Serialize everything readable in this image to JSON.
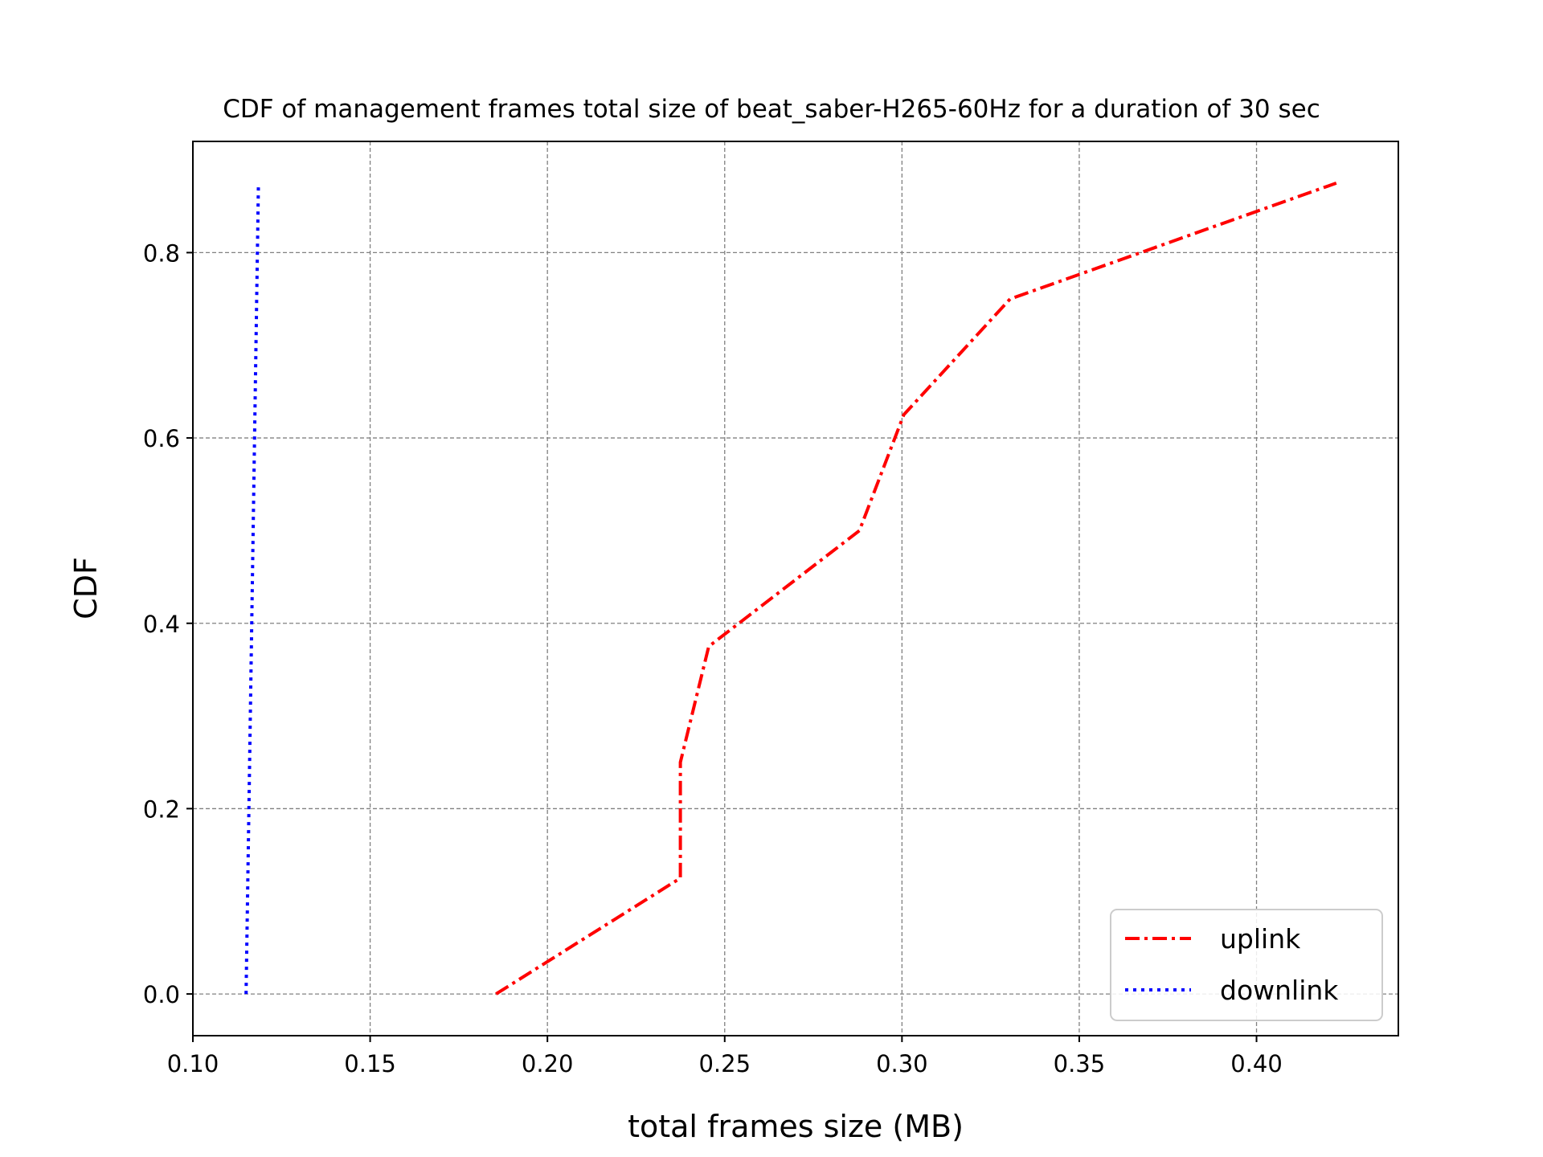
{
  "chart_data": {
    "type": "line",
    "title": "CDF of management frames total size of beat_saber-H265-60Hz for a duration of 30 sec",
    "xlabel": "total frames size (MB)",
    "ylabel": "CDF",
    "xlim": [
      0.1,
      0.44
    ],
    "ylim": [
      -0.045,
      0.92
    ],
    "xticks": [
      0.1,
      0.15,
      0.2,
      0.25,
      0.3,
      0.35,
      0.4
    ],
    "xtick_labels": [
      "0.10",
      "0.15",
      "0.20",
      "0.25",
      "0.30",
      "0.35",
      "0.40"
    ],
    "yticks": [
      0.0,
      0.2,
      0.4,
      0.6,
      0.8
    ],
    "ytick_labels": [
      "0.0",
      "0.2",
      "0.4",
      "0.6",
      "0.8"
    ],
    "grid": true,
    "legend_position": "bottom-right",
    "series": [
      {
        "name": "uplink",
        "color": "#ff0000",
        "linestyle": "dashdot",
        "x": [
          0.1855,
          0.2375,
          0.2375,
          0.2455,
          0.288,
          0.3005,
          0.3305,
          0.4225
        ],
        "y": [
          0.0,
          0.125,
          0.25,
          0.375,
          0.5,
          0.625,
          0.75,
          0.875
        ]
      },
      {
        "name": "downlink",
        "color": "#0000ff",
        "linestyle": "dotted",
        "x": [
          0.115,
          0.1155,
          0.116,
          0.1165,
          0.117,
          0.1175,
          0.118,
          0.1185
        ],
        "y": [
          0.0,
          0.125,
          0.25,
          0.375,
          0.5,
          0.625,
          0.75,
          0.875
        ]
      }
    ]
  }
}
